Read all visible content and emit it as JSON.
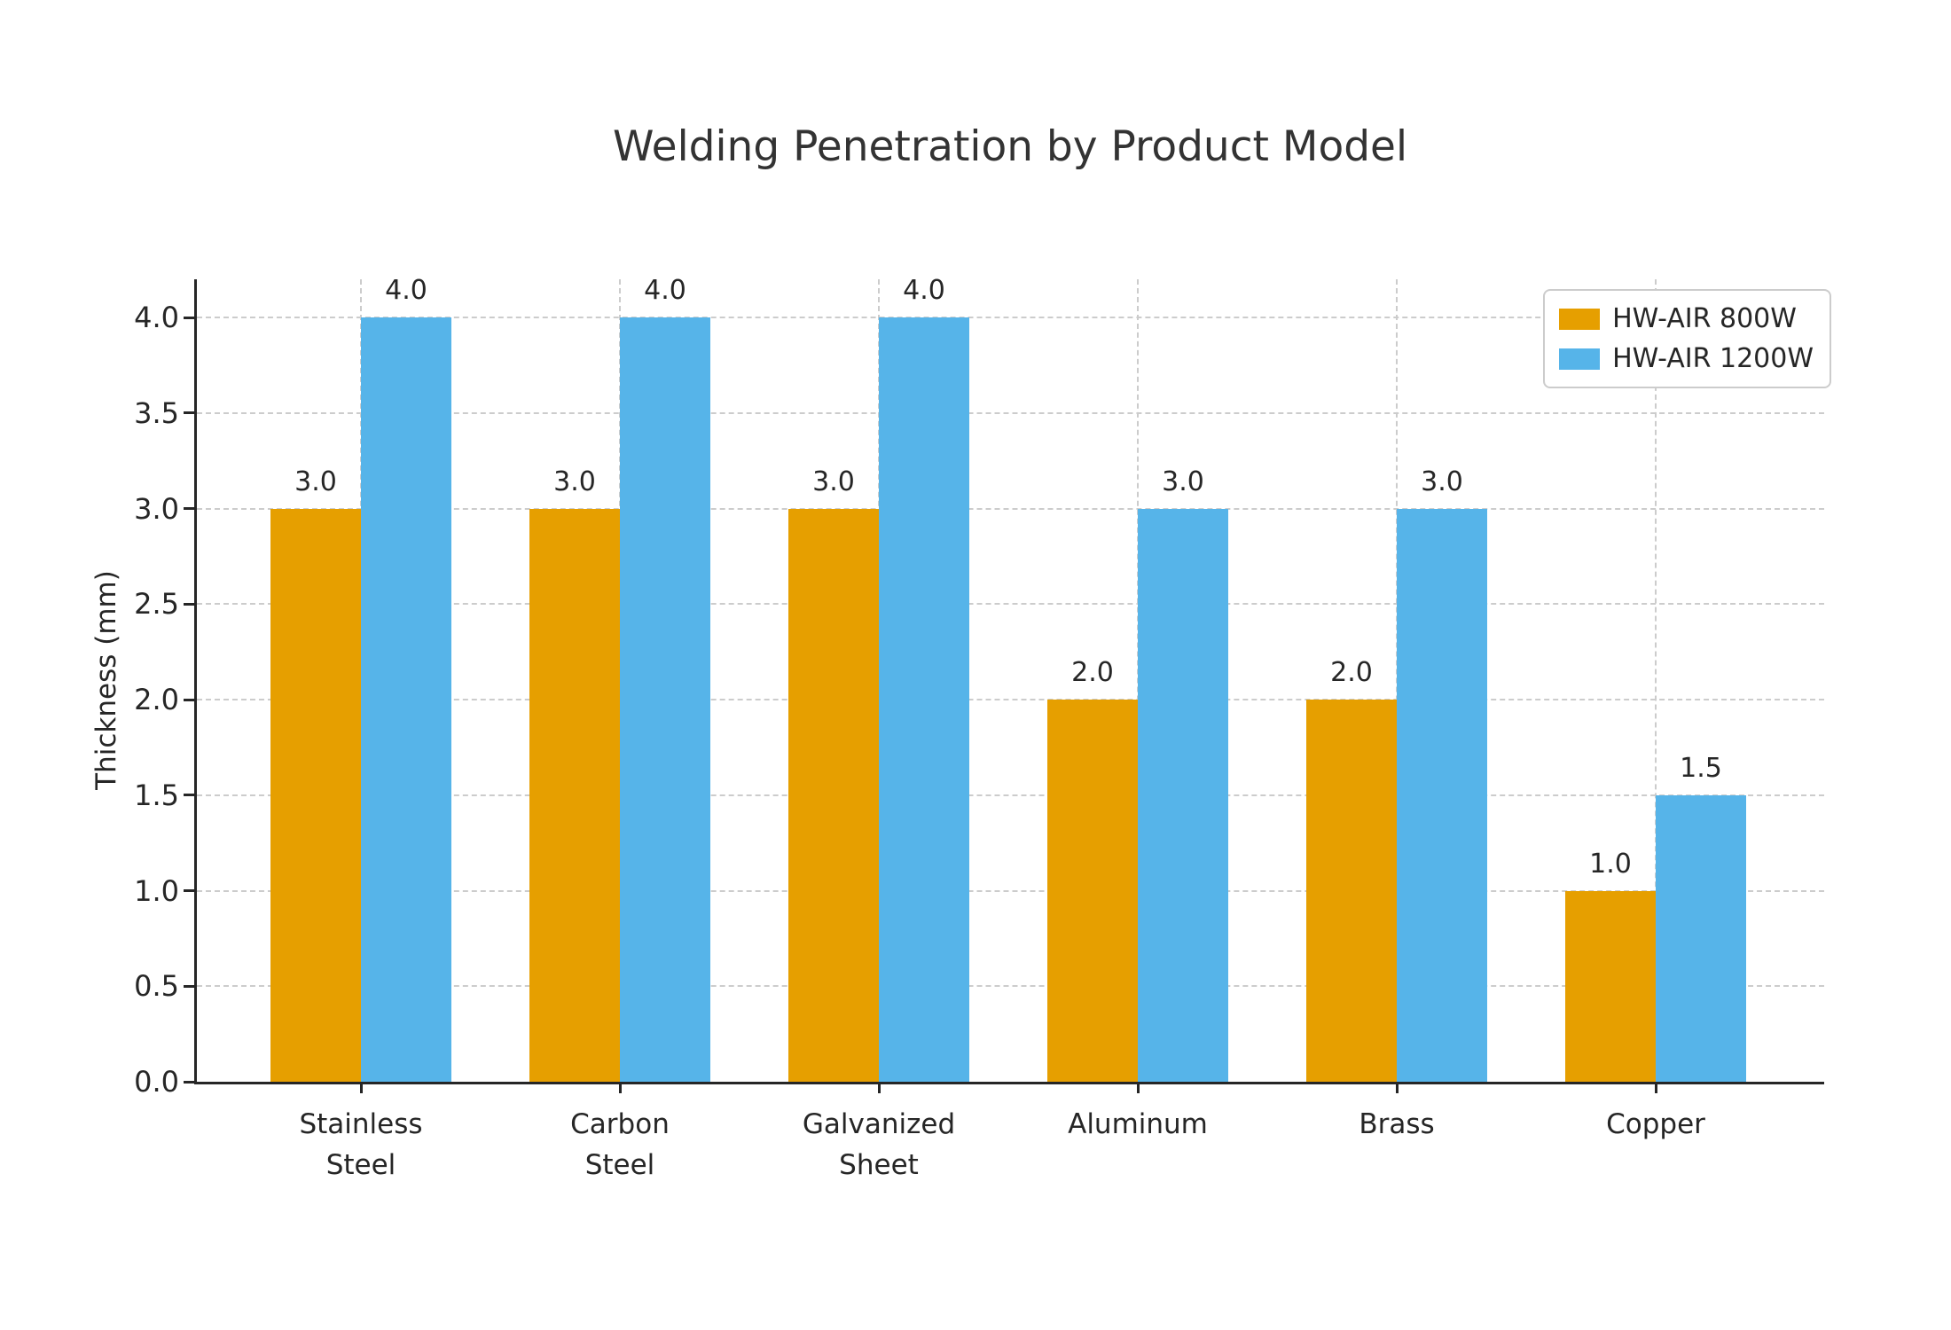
{
  "chart_data": {
    "type": "bar",
    "title": "Welding Penetration by Product Model",
    "xlabel": "",
    "ylabel": "Thickness (mm)",
    "categories": [
      "Stainless\nSteel",
      "Carbon\nSteel",
      "Galvanized\nSheet",
      "Aluminum",
      "Brass",
      "Copper"
    ],
    "series": [
      {
        "name": "HW-AIR 800W",
        "color": "#E69F00",
        "values": [
          3.0,
          3.0,
          3.0,
          2.0,
          2.0,
          1.0
        ]
      },
      {
        "name": "HW-AIR 1200W",
        "color": "#56B4E9",
        "values": [
          4.0,
          4.0,
          4.0,
          3.0,
          3.0,
          1.5
        ]
      }
    ],
    "yticks": [
      0.0,
      0.5,
      1.0,
      1.5,
      2.0,
      2.5,
      3.0,
      3.5,
      4.0
    ],
    "ylim": [
      0,
      4.2
    ],
    "grid": true,
    "grid_style": "dashed",
    "bar_value_labels": true,
    "value_label_format": "one-decimal",
    "legend_position": "upper right",
    "colors": {
      "text": "#262626",
      "grid": "#cccccc",
      "spine": "#262626",
      "background": "#ffffff"
    }
  }
}
